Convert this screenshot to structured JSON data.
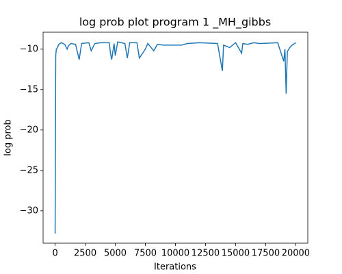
{
  "chart_data": {
    "type": "line",
    "title": "log prob plot program 1 _MH_gibbs",
    "xlabel": "Iterations",
    "ylabel": "log prob",
    "series": [
      {
        "color": "#1f77b4",
        "x": [
          0,
          50,
          100,
          200,
          300,
          500,
          800,
          1000,
          1100,
          1300,
          1700,
          2000,
          2200,
          2800,
          3000,
          3300,
          3800,
          4500,
          4600,
          4700,
          4900,
          5000,
          5200,
          5800,
          6000,
          6200,
          6800,
          7000,
          7500,
          7700,
          8200,
          8500,
          9000,
          10500,
          11000,
          12000,
          13500,
          13900,
          14000,
          14500,
          15000,
          15500,
          15600,
          16000,
          16500,
          17000,
          18500,
          19000,
          19100,
          19200,
          19300,
          19500,
          19700,
          20000
        ],
        "values": [
          -32.8,
          -10.8,
          -10,
          -9.8,
          -9.4,
          -9.2,
          -9.4,
          -10,
          -9.6,
          -9.3,
          -9.4,
          -11.3,
          -9.3,
          -9.2,
          -10.2,
          -9.3,
          -9.2,
          -9.2,
          -10.5,
          -11.3,
          -9.3,
          -10.8,
          -9.1,
          -9.3,
          -11.1,
          -9.2,
          -9.2,
          -11.1,
          -10,
          -9.3,
          -10.2,
          -9.4,
          -9.5,
          -9.5,
          -9.3,
          -9.2,
          -9.3,
          -12.7,
          -9.5,
          -9.8,
          -9.2,
          -10.5,
          -9.3,
          -9.4,
          -9.2,
          -9.3,
          -9.2,
          -11.5,
          -10,
          -15.5,
          -10.3,
          -9.8,
          -9.5,
          -9.2
        ]
      }
    ],
    "xlim": [
      -1000,
      21000
    ],
    "xticks": [
      0,
      2500,
      5000,
      7500,
      10000,
      12500,
      15000,
      17500,
      20000
    ],
    "ylim": [
      -34,
      -7.9
    ],
    "yticks": [
      {
        "value": -10,
        "label": "−10"
      },
      {
        "value": -15,
        "label": "−15"
      },
      {
        "value": -20,
        "label": "−20"
      },
      {
        "value": -25,
        "label": "−25"
      },
      {
        "value": -30,
        "label": "−30"
      }
    ]
  }
}
